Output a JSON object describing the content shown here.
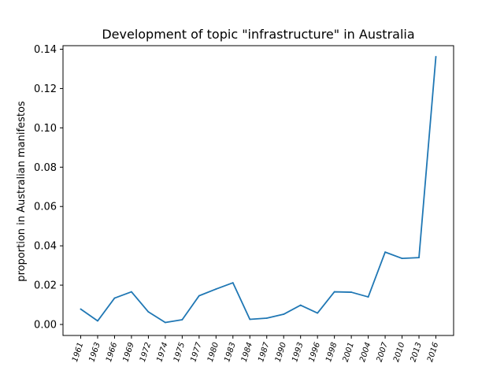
{
  "chart_data": {
    "type": "line",
    "title": "Development of topic \"infrastructure\" in Australia",
    "xlabel": "",
    "ylabel": "proportion in Australian manifestos",
    "categories": [
      "1961",
      "1963",
      "1966",
      "1969",
      "1972",
      "1974",
      "1975",
      "1977",
      "1980",
      "1983",
      "1984",
      "1987",
      "1990",
      "1993",
      "1996",
      "1998",
      "2001",
      "2004",
      "2007",
      "2010",
      "2013",
      "2016"
    ],
    "series": [
      {
        "color": "#1f77b4",
        "values": [
          0.0078,
          0.0018,
          0.0134,
          0.0166,
          0.0064,
          0.001,
          0.0024,
          0.0146,
          0.018,
          0.0212,
          0.0026,
          0.0032,
          0.0052,
          0.0098,
          0.0058,
          0.0166,
          0.0164,
          0.014,
          0.0368,
          0.0336,
          0.034,
          0.1362
        ]
      }
    ],
    "ylim": [
      -0.0056,
      0.1418
    ],
    "yticks": [
      "0.00",
      "0.02",
      "0.04",
      "0.06",
      "0.08",
      "0.10",
      "0.12",
      "0.14"
    ],
    "grid": false,
    "legend": "none"
  }
}
